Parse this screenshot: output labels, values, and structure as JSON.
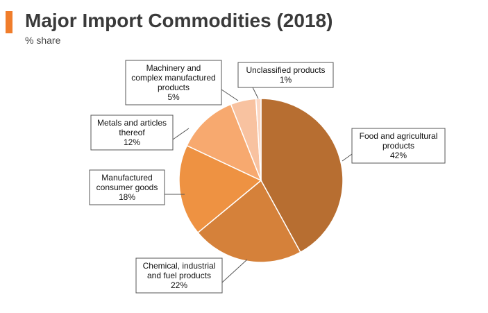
{
  "header": {
    "title": "Major Import Commodities (2018)",
    "subtitle": "% share",
    "accent_color": "#f07d2b"
  },
  "chart_data": {
    "type": "pie",
    "title": "Major Import Commodities (2018)",
    "subtitle": "% share",
    "unit": "%",
    "start": "12 o'clock",
    "direction": "clockwise",
    "slices": [
      {
        "name": "Food and agricultural products",
        "label_lines": [
          "Food and agricultural",
          "products"
        ],
        "value": 42,
        "value_label": "42%",
        "color": "#b76e31"
      },
      {
        "name": "Chemical, industrial and fuel products",
        "label_lines": [
          "Chemical, industrial",
          "and fuel products"
        ],
        "value": 22,
        "value_label": "22%",
        "color": "#d5813a"
      },
      {
        "name": "Manufactured consumer goods",
        "label_lines": [
          "Manufactured",
          "consumer goods"
        ],
        "value": 18,
        "value_label": "18%",
        "color": "#ee9242"
      },
      {
        "name": "Metals and articles thereof",
        "label_lines": [
          "Metals and articles",
          "thereof"
        ],
        "value": 12,
        "value_label": "12%",
        "color": "#f7a96f"
      },
      {
        "name": "Machinery and complex manufactured products",
        "label_lines": [
          "Machinery and",
          "complex manufactured",
          "products"
        ],
        "value": 5,
        "value_label": "5%",
        "color": "#f8c2a0"
      },
      {
        "name": "Unclassified products",
        "label_lines": [
          "Unclassified products"
        ],
        "value": 1,
        "value_label": "1%",
        "color": "#fbd7c3"
      }
    ]
  }
}
